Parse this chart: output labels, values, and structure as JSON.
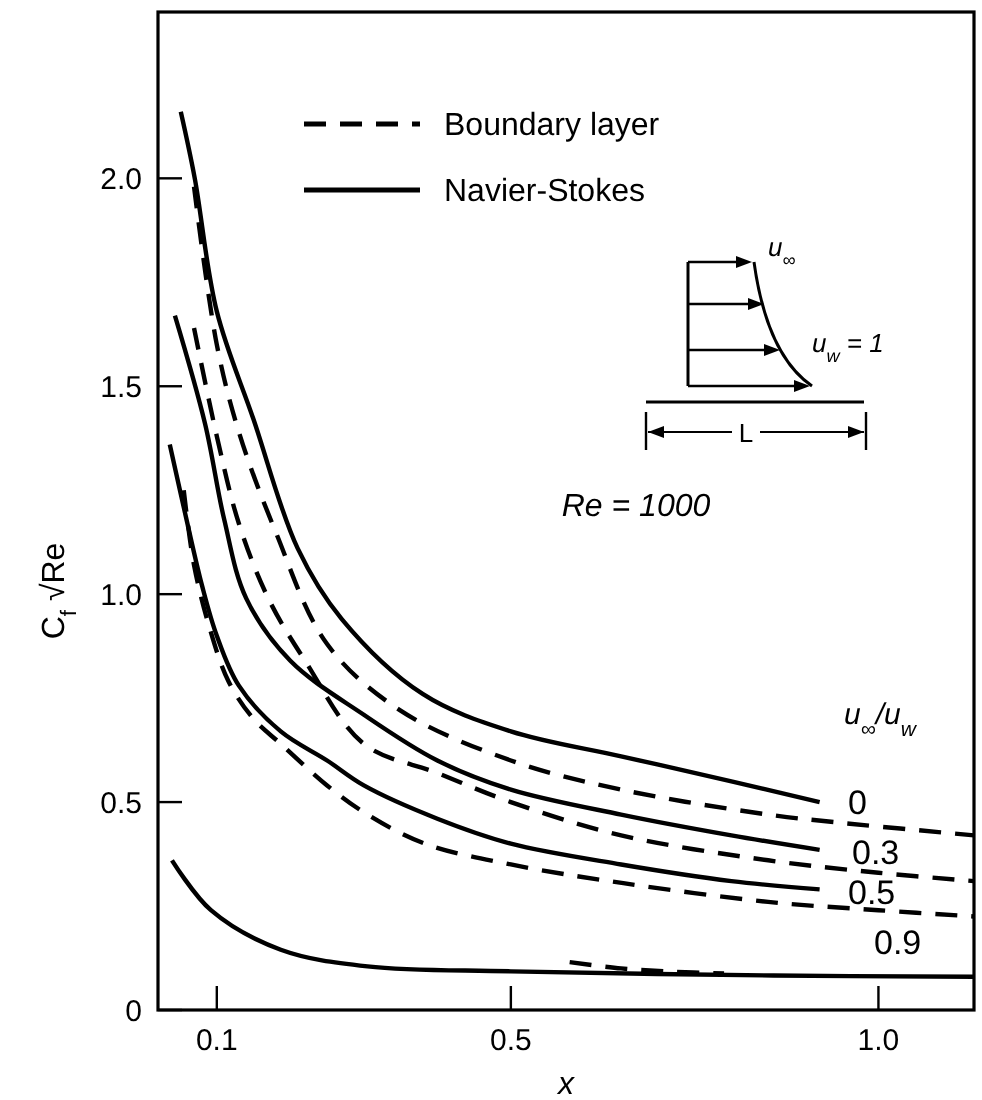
{
  "chart_data": {
    "type": "line",
    "xlabel": "x",
    "ylabel": "C$_{f}$ √Re",
    "xlim": [
      0.02,
      1.13
    ],
    "xticks": [
      0.1,
      0.5,
      {
        "value": 1.0,
        "label": "1.0"
      }
    ],
    "ylim": [
      0,
      2.4
    ],
    "yticks": [
      0,
      0.5,
      {
        "value": 1.0,
        "label": "1.0"
      },
      1.5,
      {
        "value": 2.0,
        "label": "2.0"
      }
    ],
    "grid": false,
    "legend": "top left",
    "marker": "none",
    "series": [
      {
        "name": "Boundary layer",
        "color": "#000000",
        "line_style": "dashed",
        "x": [
          0.069,
          0.1,
          0.13,
          0.18,
          0.25,
          0.35,
          0.5,
          0.65,
          0.85,
          0.95,
          1.13
        ],
        "values": [
          1.98,
          1.6,
          1.39,
          1.15,
          0.88,
          0.72,
          0.6,
          0.53,
          0.47,
          0.45,
          0.42
        ]
      },
      {
        "name": "Navier-Stokes",
        "color": "#000000",
        "line_style": "solid",
        "x": [
          0.051,
          0.07,
          0.1,
          0.15,
          0.21,
          0.27,
          0.38,
          0.5,
          0.65,
          0.8,
          0.92
        ],
        "values": [
          2.16,
          2.0,
          1.68,
          1.42,
          1.11,
          0.94,
          0.76,
          0.67,
          0.61,
          0.55,
          0.5
        ]
      },
      {
        "color": "#000000",
        "line_style": "dashed",
        "x": [
          0.069,
          0.1,
          0.13,
          0.17,
          0.22,
          0.3,
          0.4,
          0.5,
          0.65,
          0.85,
          1.0,
          1.13
        ],
        "values": [
          1.64,
          1.38,
          1.17,
          0.99,
          0.84,
          0.64,
          0.57,
          0.5,
          0.42,
          0.36,
          0.33,
          0.31
        ]
      },
      {
        "color": "#000000",
        "line_style": "solid",
        "x": [
          0.043,
          0.084,
          0.11,
          0.14,
          0.2,
          0.3,
          0.4,
          0.5,
          0.65,
          0.8,
          0.92
        ],
        "values": [
          1.67,
          1.41,
          1.18,
          0.99,
          0.84,
          0.71,
          0.6,
          0.53,
          0.47,
          0.42,
          0.385
        ]
      },
      {
        "color": "#000000",
        "line_style": "dashed",
        "x": [
          0.055,
          0.069,
          0.09,
          0.116,
          0.15,
          0.187,
          0.25,
          0.305,
          0.383,
          0.5,
          0.653,
          0.85,
          1.0,
          1.13
        ],
        "values": [
          1.25,
          1.07,
          0.92,
          0.79,
          0.7,
          0.64,
          0.54,
          0.47,
          0.4,
          0.35,
          0.305,
          0.26,
          0.24,
          0.225
        ]
      },
      {
        "color": "#000000",
        "line_style": "solid",
        "x": [
          0.036,
          0.06,
          0.08,
          0.1,
          0.13,
          0.187,
          0.25,
          0.3,
          0.4,
          0.5,
          0.65,
          0.8,
          0.92
        ],
        "values": [
          1.36,
          1.17,
          1.02,
          0.9,
          0.78,
          0.67,
          0.6,
          0.54,
          0.46,
          0.4,
          0.35,
          0.31,
          0.29
        ]
      },
      {
        "color": "#000000",
        "line_style": "dashed",
        "x": [
          0.58,
          0.65,
          0.72,
          0.79
        ],
        "values": [
          0.115,
          0.1,
          0.092,
          0.088
        ]
      },
      {
        "color": "#000000",
        "line_style": "solid",
        "x": [
          0.039,
          0.092,
          0.187,
          0.305,
          0.5,
          0.857,
          1.13
        ],
        "values": [
          0.36,
          0.24,
          0.145,
          0.105,
          0.093,
          0.083,
          0.08
        ]
      }
    ],
    "annotations": [
      "Re = 1000",
      "u$_{∞}$/u$_{w}$",
      "u$_{∞}$",
      "u$_{w}$ = 1",
      "L",
      "0",
      "0.3",
      "0.5",
      "0.9"
    ]
  }
}
